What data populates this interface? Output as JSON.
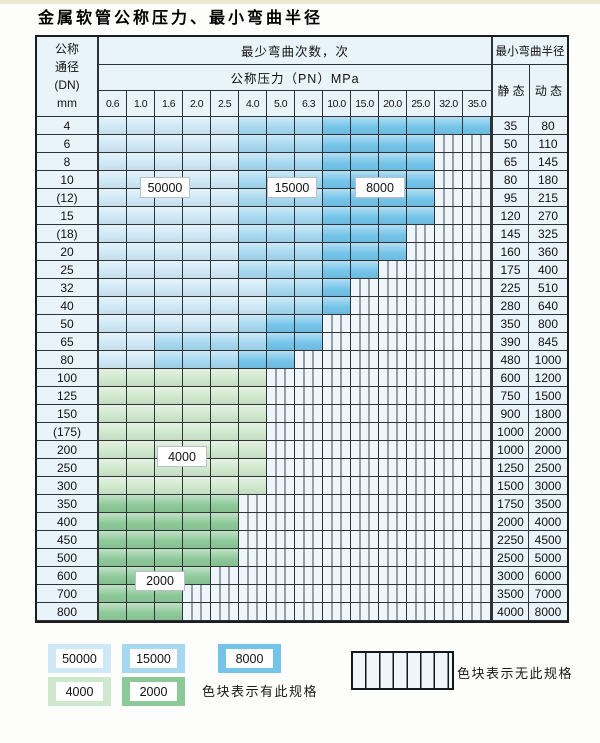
{
  "page": {
    "title": "金属软管公称压力、最小弯曲半径"
  },
  "colors": {
    "band_50000": "#cfe8f6",
    "band_15000": "#a6d8f0",
    "band_8000": "#74c4ea",
    "band_4000": "#cfe7cc",
    "band_2000": "#8dc998",
    "stripe_bg": "#eef6fb",
    "stripe_line": "#40464c",
    "grid_line": "#2e3338",
    "cell_bg": "#e9f3fa"
  },
  "table": {
    "header": {
      "left_lines": [
        "公称",
        "通径",
        "(DN)",
        "mm"
      ],
      "mid_top": "最少弯曲次数，次",
      "mid_sub": "公称压力（PN）MPa",
      "pressure_columns": [
        "0.6",
        "1.0",
        "1.6",
        "2.0",
        "2.5",
        "4.0",
        "5.0",
        "6.3",
        "10.0",
        "15.0",
        "20.0",
        "25.0",
        "32.0",
        "35.0"
      ],
      "right_top": "最小弯曲半径",
      "static_label": "静 态",
      "dynamic_label": "动 态"
    },
    "band_legend_meaning": {
      "L": "50000",
      "M": "15000",
      "D": "8000",
      "G": "4000",
      "E": "2000",
      "X": "无此规格"
    },
    "rows": [
      {
        "dn": "4",
        "bands": "LLLLLMMMDDDDDD",
        "static": "35",
        "dynamic": "80"
      },
      {
        "dn": "6",
        "bands": "LLLLLMMMDDDDXX",
        "static": "50",
        "dynamic": "110"
      },
      {
        "dn": "8",
        "bands": "LLLLLMMMDDDDXX",
        "static": "65",
        "dynamic": "145"
      },
      {
        "dn": "10",
        "bands": "LLLLLMMMDDDDXX",
        "static": "80",
        "dynamic": "180"
      },
      {
        "dn": "(12)",
        "bands": "LLLLLMMMDDDDXX",
        "static": "95",
        "dynamic": "215"
      },
      {
        "dn": "15",
        "bands": "LLLLLMMMDDDDXX",
        "static": "120",
        "dynamic": "270"
      },
      {
        "dn": "(18)",
        "bands": "LLLLLMMMDDDXXX",
        "static": "145",
        "dynamic": "325"
      },
      {
        "dn": "20",
        "bands": "LLLLLMMMDDDXXX",
        "static": "160",
        "dynamic": "360"
      },
      {
        "dn": "25",
        "bands": "LLLLLMMMDDXXXX",
        "static": "175",
        "dynamic": "400"
      },
      {
        "dn": "32",
        "bands": "LLLLLLMMDXXXXX",
        "static": "225",
        "dynamic": "510"
      },
      {
        "dn": "40",
        "bands": "LLLLLLMMDXXXXX",
        "static": "280",
        "dynamic": "640"
      },
      {
        "dn": "50",
        "bands": "LLLLLMDDXXXXXX",
        "static": "350",
        "dynamic": "800"
      },
      {
        "dn": "65",
        "bands": "LLMMMMDDXXXXXX",
        "static": "390",
        "dynamic": "845"
      },
      {
        "dn": "80",
        "bands": "LLMMMDDXXXXXXX",
        "static": "480",
        "dynamic": "1000"
      },
      {
        "dn": "100",
        "bands": "GGGGGGXXXXXXXX",
        "static": "600",
        "dynamic": "1200"
      },
      {
        "dn": "125",
        "bands": "GGGGGGXXXXXXXX",
        "static": "750",
        "dynamic": "1500"
      },
      {
        "dn": "150",
        "bands": "GGGGGGXXXXXXXX",
        "static": "900",
        "dynamic": "1800"
      },
      {
        "dn": "(175)",
        "bands": "GGGGGGXXXXXXXX",
        "static": "1000",
        "dynamic": "2000"
      },
      {
        "dn": "200",
        "bands": "GGGGGGXXXXXXXX",
        "static": "1000",
        "dynamic": "2000"
      },
      {
        "dn": "250",
        "bands": "GGGGGGXXXXXXXX",
        "static": "1250",
        "dynamic": "2500"
      },
      {
        "dn": "300",
        "bands": "GGGGGGXXXXXXXX",
        "static": "1500",
        "dynamic": "3000"
      },
      {
        "dn": "350",
        "bands": "EEEEEXXXXXXXXX",
        "static": "1750",
        "dynamic": "3500"
      },
      {
        "dn": "400",
        "bands": "EEEEEXXXXXXXXX",
        "static": "2000",
        "dynamic": "4000"
      },
      {
        "dn": "450",
        "bands": "EEEEEXXXXXXXXX",
        "static": "2250",
        "dynamic": "4500"
      },
      {
        "dn": "500",
        "bands": "EEEEEXXXXXXXXX",
        "static": "2500",
        "dynamic": "5000"
      },
      {
        "dn": "600",
        "bands": "EEEEXXXXXXXXXX",
        "static": "3000",
        "dynamic": "6000"
      },
      {
        "dn": "700",
        "bands": "EEEXXXXXXXXXXX",
        "static": "3500",
        "dynamic": "7000"
      },
      {
        "dn": "800",
        "bands": "EEEXXXXXXXXXXX",
        "static": "4000",
        "dynamic": "8000"
      }
    ],
    "overlay_labels": [
      "50000",
      "15000",
      "8000",
      "4000",
      "2000"
    ]
  },
  "legend": {
    "blocks": [
      {
        "label": "50000",
        "color_key": "band_50000"
      },
      {
        "label": "15000",
        "color_key": "band_15000"
      },
      {
        "label": "8000",
        "color_key": "band_8000"
      },
      {
        "label": "4000",
        "color_key": "band_4000"
      },
      {
        "label": "2000",
        "color_key": "band_2000"
      }
    ],
    "available_text": "色块表示有此规格",
    "unavailable_text": "色块表示无此规格"
  }
}
